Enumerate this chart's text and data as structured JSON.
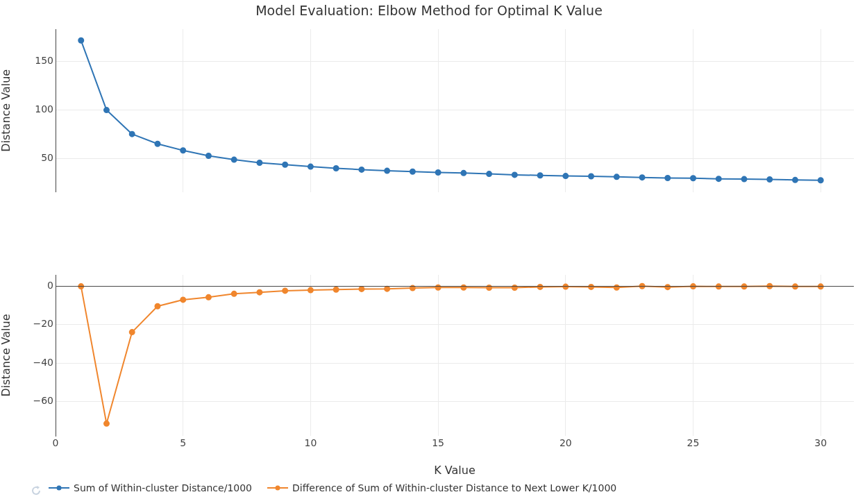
{
  "chart_data": [
    {
      "type": "line",
      "title": "Model Evaluation: Elbow Method for Optimal K Value",
      "ylabel": "Distance Value",
      "x": [
        1,
        2,
        3,
        4,
        5,
        6,
        7,
        8,
        9,
        10,
        11,
        12,
        13,
        14,
        15,
        16,
        17,
        18,
        19,
        20,
        21,
        22,
        23,
        24,
        25,
        26,
        27,
        28,
        29,
        30
      ],
      "series": [
        {
          "name": "Sum of Within-cluster Distance/1000",
          "color": "#2f75b5",
          "values": [
            171.4,
            100,
            75.4,
            65.4,
            58.6,
            53.1,
            49.1,
            46,
            44,
            42,
            40.3,
            38.9,
            37.7,
            36.9,
            36,
            35.4,
            34.5,
            33.6,
            33,
            32.4,
            32.1,
            31.5,
            30.9,
            30.3,
            30.1,
            29.5,
            29.2,
            28.9,
            28.3,
            28
          ]
        }
      ],
      "xlim": [
        0,
        31.3
      ],
      "xticks": [
        0,
        5,
        10,
        15,
        20,
        25,
        30
      ],
      "ylim": [
        16,
        183
      ],
      "yticks": [
        50,
        100,
        150
      ],
      "tick_labels": "y",
      "grid": true,
      "legend": "bottom left",
      "marker": "circle",
      "line_style": "solid"
    },
    {
      "type": "line",
      "xlabel": "K Value",
      "ylabel": "Distance Value",
      "x": [
        1,
        2,
        3,
        4,
        5,
        6,
        7,
        8,
        9,
        10,
        11,
        12,
        13,
        14,
        15,
        16,
        17,
        18,
        19,
        20,
        21,
        22,
        23,
        24,
        25,
        26,
        27,
        28,
        29,
        30
      ],
      "series": [
        {
          "name": "Difference of Sum of Within-cluster Distance to Next Lower K/1000",
          "color": "#f0862d",
          "values": [
            0,
            -71.6,
            -23.9,
            -10.4,
            -7,
            -5.7,
            -3.9,
            -3.1,
            -2.3,
            -2,
            -1.7,
            -1.4,
            -1.3,
            -0.9,
            -0.6,
            -0.6,
            -0.7,
            -0.7,
            -0.3,
            -0.2,
            -0.3,
            -0.6,
            0.1,
            -0.4,
            0,
            -0.1,
            -0.1,
            0.1,
            -0.1,
            -0.1
          ]
        }
      ],
      "xlim": [
        0,
        31.3
      ],
      "xticks": [
        0,
        5,
        10,
        15,
        20,
        25,
        30
      ],
      "ylim": [
        -78,
        6
      ],
      "yticks": [
        -60,
        -40,
        -20,
        0
      ],
      "grid": true,
      "legend": "bottom left",
      "marker": "circle",
      "line_style": "solid",
      "ref_lines": [
        {
          "axis": "y",
          "value": 0,
          "color": "#444444"
        }
      ]
    }
  ]
}
